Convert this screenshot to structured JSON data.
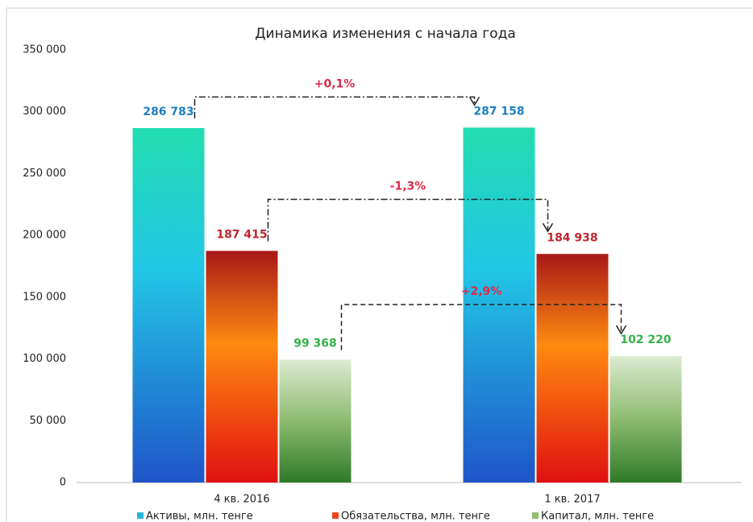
{
  "chart_data": {
    "type": "bar",
    "title": "Динамика изменения с начала года",
    "categories": [
      "4 кв. 2016",
      "1 кв. 2017"
    ],
    "series": [
      {
        "name": "Активы, млн. тенге",
        "color": "#27b4dc",
        "label_color": "#1f7fc0",
        "values": [
          286783,
          287158
        ],
        "value_labels": [
          "286 783",
          "287 158"
        ],
        "change_label": "+0,1%"
      },
      {
        "name": "Обязательства, млн. тенге",
        "color": "#e8461c",
        "label_color": "#c0272d",
        "values": [
          187415,
          184938
        ],
        "value_labels": [
          "187 415",
          "184 938"
        ],
        "change_label": "-1,3%"
      },
      {
        "name": "Капитал, млн. тенге",
        "color": "#8fbf6e",
        "label_color": "#35b24a",
        "values": [
          99368,
          102220
        ],
        "value_labels": [
          "99 368",
          "102 220"
        ],
        "change_label": "+2,9%"
      }
    ],
    "ylim": [
      0,
      350000
    ],
    "yticks": [
      0,
      {
        "value": 50000,
        "label": "50 000"
      },
      {
        "value": 100000,
        "label": "100 000"
      },
      {
        "value": 150000,
        "label": "150 000"
      },
      {
        "value": 200000,
        "label": "200 000"
      },
      {
        "value": 250000,
        "label": "250 000"
      },
      {
        "value": 300000,
        "label": "300 000"
      },
      {
        "value": 350000,
        "label": "350 000"
      }
    ]
  }
}
